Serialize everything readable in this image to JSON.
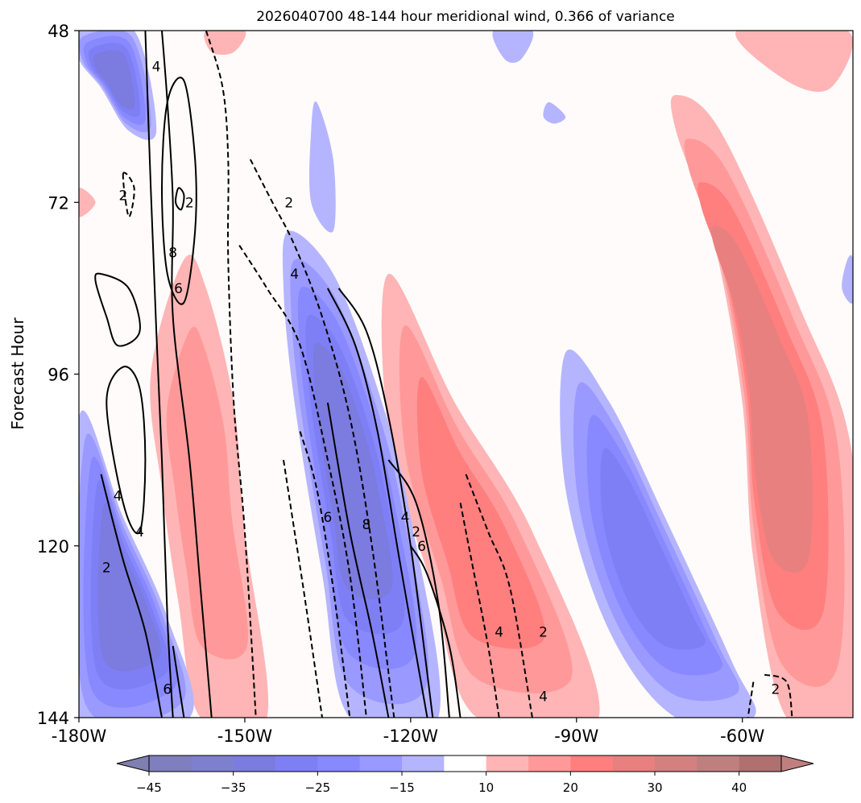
{
  "chart_data": {
    "type": "heatmap",
    "subtype": "filled-contour (Hovmoller) with line-contour overlay",
    "title": "2026040700 48-144 hour meridional wind, 0.366 of variance",
    "xlabel": "",
    "ylabel": "Forecast Hour",
    "xlim": [
      -180,
      -40
    ],
    "ylim": [
      48,
      144
    ],
    "y_inverted": true,
    "x_ticks": [
      -180,
      -150,
      -120,
      -90,
      -60
    ],
    "x_tick_labels": [
      "-180W",
      "-150W",
      "-120W",
      "-90W",
      "-60W"
    ],
    "y_ticks": [
      48,
      72,
      96,
      120,
      144
    ],
    "y_tick_labels": [
      "48",
      "72",
      "96",
      "120",
      "144"
    ],
    "colorbar": {
      "orientation": "horizontal",
      "extend": "both",
      "ticks": [
        -45,
        -35,
        -25,
        -15,
        10,
        20,
        30,
        40
      ],
      "tick_labels": [
        "−45",
        "−35",
        "−25",
        "−15",
        "10",
        "20",
        "30",
        "40"
      ],
      "levels": [
        -45,
        -40,
        -35,
        -30,
        -25,
        -20,
        -15,
        -10,
        10,
        15,
        20,
        25,
        30,
        35,
        40,
        45
      ],
      "colors": [
        "#7f7fbf",
        "#7f7fd0",
        "#7b7be0",
        "#7f7ff5",
        "#8888ff",
        "#9999ff",
        "#b5b5ff",
        "#ffffff",
        "#ffb5b5",
        "#ff9999",
        "#ff7f7f",
        "#e88080",
        "#d48080",
        "#c07f7f",
        "#b07070"
      ],
      "under_color": "#7f7fb0",
      "over_color": "#c07f7f"
    },
    "positive_bands": [
      {
        "name": "band A",
        "max_level": 20,
        "pts": [
          [
            -167,
            96
          ],
          [
            -161,
            80
          ],
          [
            -157,
            84
          ],
          [
            -152,
            100
          ],
          [
            -150,
            118
          ],
          [
            -146,
            144
          ],
          [
            -158,
            144
          ],
          [
            -162,
            128
          ],
          [
            -165,
            112
          ]
        ]
      },
      {
        "name": "band B",
        "max_level": 25,
        "pts": [
          [
            -124,
            82
          ],
          [
            -112,
            100
          ],
          [
            -98,
            118
          ],
          [
            -86,
            144
          ],
          [
            -108,
            144
          ],
          [
            -116,
            126
          ],
          [
            -124,
            104
          ]
        ]
      },
      {
        "name": "band C",
        "max_level": 30,
        "pts": [
          [
            -72,
            57
          ],
          [
            -64,
            62
          ],
          [
            -50,
            86
          ],
          [
            -40,
            108
          ],
          [
            -40,
            144
          ],
          [
            -52,
            144
          ],
          [
            -58,
            122
          ],
          [
            -60,
            100
          ],
          [
            -65,
            78
          ],
          [
            -72,
            62
          ]
        ]
      },
      {
        "name": "band D",
        "max_level": 15,
        "pts": [
          [
            -157,
            48
          ],
          [
            -150,
            48
          ],
          [
            -152,
            51
          ],
          [
            -156,
            51
          ]
        ]
      },
      {
        "name": "band E",
        "max_level": 15,
        "pts": [
          [
            -61,
            48
          ],
          [
            -41,
            48
          ],
          [
            -44,
            56
          ],
          [
            -52,
            55
          ]
        ]
      },
      {
        "name": "band F",
        "max_level": 15,
        "pts": [
          [
            -180,
            70
          ],
          [
            -177,
            72
          ],
          [
            -180,
            74
          ]
        ]
      }
    ],
    "negative_bands": [
      {
        "name": "band G",
        "min_level": -35,
        "pts": [
          [
            -180,
            48
          ],
          [
            -170,
            48
          ],
          [
            -166,
            62
          ],
          [
            -171,
            62
          ],
          [
            -176,
            56
          ],
          [
            -180,
            52
          ]
        ]
      },
      {
        "name": "band H",
        "min_level": -35,
        "pts": [
          [
            -142,
            76
          ],
          [
            -134,
            82
          ],
          [
            -126,
            98
          ],
          [
            -120,
            116
          ],
          [
            -115,
            144
          ],
          [
            -131,
            144
          ],
          [
            -136,
            124
          ],
          [
            -141,
            100
          ],
          [
            -143,
            84
          ]
        ]
      },
      {
        "name": "band I",
        "min_level": -35,
        "pts": [
          [
            -180,
            102
          ],
          [
            -172,
            116
          ],
          [
            -164,
            130
          ],
          [
            -160,
            144
          ],
          [
            -180,
            144
          ]
        ]
      },
      {
        "name": "band J",
        "min_level": -30,
        "pts": [
          [
            -92,
            93
          ],
          [
            -84,
            100
          ],
          [
            -74,
            116
          ],
          [
            -62,
            136
          ],
          [
            -58,
            144
          ],
          [
            -72,
            144
          ],
          [
            -84,
            132
          ],
          [
            -92,
            112
          ]
        ]
      },
      {
        "name": "band K",
        "min_level": -15,
        "pts": [
          [
            -137,
            58
          ],
          [
            -134,
            66
          ],
          [
            -134,
            76
          ],
          [
            -138,
            72
          ],
          [
            -138,
            62
          ]
        ]
      },
      {
        "name": "band L",
        "min_level": -15,
        "pts": [
          [
            -105,
            48
          ],
          [
            -98,
            48
          ],
          [
            -100,
            52
          ],
          [
            -103,
            52
          ]
        ]
      },
      {
        "name": "band M",
        "min_level": -15,
        "pts": [
          [
            -95,
            58
          ],
          [
            -92,
            60
          ],
          [
            -94,
            61
          ],
          [
            -96,
            60
          ]
        ]
      },
      {
        "name": "band N",
        "min_level": -15,
        "pts": [
          [
            -41,
            80
          ],
          [
            -40,
            80
          ],
          [
            -40,
            86
          ],
          [
            -42,
            84
          ]
        ]
      }
    ],
    "contour_lines": [
      {
        "style": "solid",
        "pts": [
          [
            -168,
            48
          ],
          [
            -167,
            70
          ],
          [
            -166,
            90
          ],
          [
            -165,
            108
          ],
          [
            -164,
            130
          ],
          [
            -163,
            144
          ]
        ]
      },
      {
        "style": "solid",
        "pts": [
          [
            -165,
            48
          ],
          [
            -164,
            58
          ],
          [
            -163,
            72
          ],
          [
            -163,
            88
          ],
          [
            -160,
            108
          ],
          [
            -158,
            126
          ],
          [
            -156,
            144
          ]
        ]
      },
      {
        "style": "solid",
        "pts": [
          [
            -161,
            55
          ],
          [
            -159,
            66
          ],
          [
            -159,
            76
          ],
          [
            -161,
            86
          ],
          [
            -164,
            82
          ],
          [
            -165,
            70
          ],
          [
            -164,
            58
          ],
          [
            -161,
            55
          ]
        ]
      },
      {
        "style": "solid",
        "pts": [
          [
            -162,
            70
          ],
          [
            -161,
            71
          ],
          [
            -161.5,
            73
          ],
          [
            -162.5,
            72
          ],
          [
            -162,
            70
          ]
        ]
      },
      {
        "style": "solid",
        "pts": [
          [
            -177,
            83
          ],
          [
            -175,
            88
          ],
          [
            -173,
            92
          ],
          [
            -169,
            90
          ],
          [
            -171,
            84
          ],
          [
            -176,
            82
          ],
          [
            -177,
            83
          ]
        ]
      },
      {
        "style": "solid",
        "pts": [
          [
            -175,
            100
          ],
          [
            -172,
            114
          ],
          [
            -169,
            118
          ],
          [
            -168,
            108
          ],
          [
            -169,
            98
          ],
          [
            -172,
            95
          ],
          [
            -175,
            100
          ]
        ]
      },
      {
        "style": "solid",
        "pts": [
          [
            -176,
            110
          ],
          [
            -172,
            122
          ],
          [
            -168,
            132
          ],
          [
            -165,
            144
          ]
        ]
      },
      {
        "style": "solid",
        "pts": [
          [
            -163,
            134
          ],
          [
            -161,
            144
          ]
        ]
      },
      {
        "style": "solid",
        "pts": [
          [
            -135,
            84
          ],
          [
            -130,
            92
          ],
          [
            -126,
            104
          ],
          [
            -122,
            122
          ],
          [
            -117,
            144
          ]
        ]
      },
      {
        "style": "solid",
        "pts": [
          [
            -133,
            84
          ],
          [
            -128,
            90
          ],
          [
            -124,
            102
          ],
          [
            -120,
            120
          ],
          [
            -116,
            144
          ]
        ]
      },
      {
        "style": "solid",
        "pts": [
          [
            -135,
            100
          ],
          [
            -131,
            118
          ],
          [
            -127,
            132
          ],
          [
            -124,
            144
          ]
        ]
      },
      {
        "style": "solid",
        "pts": [
          [
            -124,
            108
          ],
          [
            -119,
            114
          ],
          [
            -115,
            128
          ],
          [
            -113,
            144
          ]
        ]
      },
      {
        "style": "solid",
        "pts": [
          [
            -120,
            120
          ],
          [
            -117,
            124
          ],
          [
            -113,
            134
          ],
          [
            -111,
            144
          ]
        ]
      },
      {
        "style": "dashed",
        "pts": [
          [
            -157,
            48
          ],
          [
            -154,
            56
          ],
          [
            -153,
            66
          ],
          [
            -153,
            80
          ],
          [
            -152,
            100
          ],
          [
            -150,
            118
          ],
          [
            -148,
            144
          ]
        ]
      },
      {
        "style": "dashed",
        "pts": [
          [
            -149,
            66
          ],
          [
            -145,
            72
          ],
          [
            -141,
            78
          ],
          [
            -136,
            88
          ],
          [
            -131,
            102
          ],
          [
            -127,
            120
          ],
          [
            -123,
            144
          ]
        ]
      },
      {
        "style": "dashed",
        "pts": [
          [
            -151,
            78
          ],
          [
            -146,
            84
          ],
          [
            -140,
            92
          ],
          [
            -135,
            108
          ],
          [
            -131,
            124
          ],
          [
            -128,
            144
          ]
        ]
      },
      {
        "style": "dashed",
        "pts": [
          [
            -140,
            104
          ],
          [
            -137,
            112
          ],
          [
            -134,
            126
          ],
          [
            -131,
            144
          ]
        ]
      },
      {
        "style": "dashed",
        "pts": [
          [
            -143,
            108
          ],
          [
            -141,
            118
          ],
          [
            -139,
            128
          ],
          [
            -136,
            144
          ]
        ]
      },
      {
        "style": "dashed",
        "pts": [
          [
            -172,
            68
          ],
          [
            -171,
            74
          ],
          [
            -170,
            70
          ],
          [
            -172,
            68
          ]
        ]
      },
      {
        "style": "dashed",
        "pts": [
          [
            -110,
            110
          ],
          [
            -106,
            118
          ],
          [
            -102,
            126
          ],
          [
            -98,
            144
          ]
        ]
      },
      {
        "style": "dashed",
        "pts": [
          [
            -111,
            114
          ],
          [
            -109,
            122
          ],
          [
            -106,
            134
          ],
          [
            -104,
            144
          ]
        ]
      },
      {
        "style": "dashed",
        "pts": [
          [
            -56,
            138
          ],
          [
            -52,
            139
          ],
          [
            -51,
            144
          ]
        ]
      },
      {
        "style": "dashed",
        "pts": [
          [
            -58,
            139
          ],
          [
            -59,
            144
          ]
        ]
      }
    ],
    "contour_labels": [
      {
        "text": "4",
        "x": -166,
        "y": 53
      },
      {
        "text": "2",
        "x": -172,
        "y": 71
      },
      {
        "text": "8",
        "x": -163,
        "y": 79
      },
      {
        "text": "6",
        "x": -162,
        "y": 84
      },
      {
        "text": "2",
        "x": -160,
        "y": 72
      },
      {
        "text": "2",
        "x": -142,
        "y": 72
      },
      {
        "text": "4",
        "x": -141,
        "y": 82
      },
      {
        "text": "4",
        "x": -173,
        "y": 113
      },
      {
        "text": "4",
        "x": -169,
        "y": 118
      },
      {
        "text": "2",
        "x": -175,
        "y": 123
      },
      {
        "text": "6",
        "x": -164,
        "y": 140
      },
      {
        "text": "6",
        "x": -135,
        "y": 116
      },
      {
        "text": "8",
        "x": -128,
        "y": 117
      },
      {
        "text": "4",
        "x": -121,
        "y": 116
      },
      {
        "text": "2",
        "x": -119,
        "y": 118
      },
      {
        "text": "6",
        "x": -118,
        "y": 120
      },
      {
        "text": "4",
        "x": -104,
        "y": 132
      },
      {
        "text": "2",
        "x": -96,
        "y": 132
      },
      {
        "text": "4",
        "x": -96,
        "y": 141
      },
      {
        "text": "2",
        "x": -54,
        "y": 140
      }
    ]
  }
}
